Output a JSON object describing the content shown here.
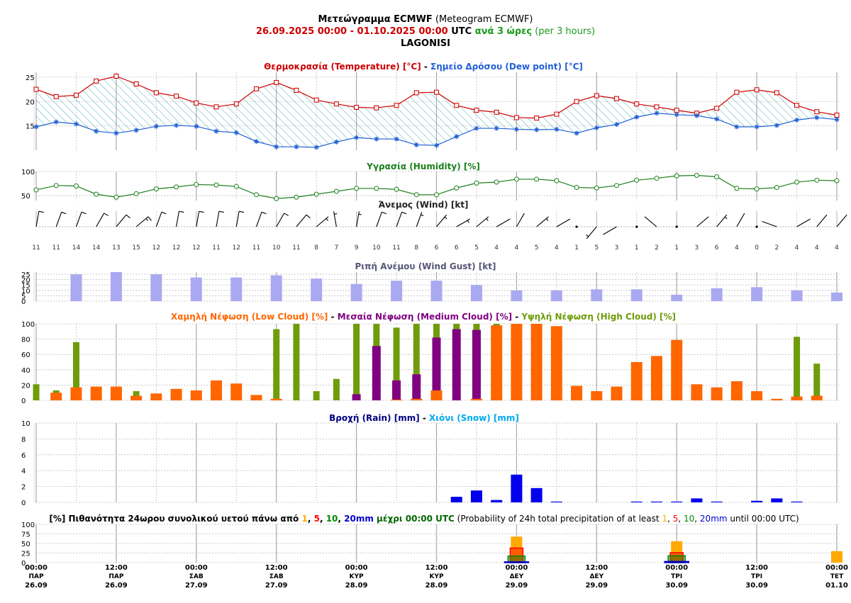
{
  "header": {
    "line1_bold": "Μετεώγραμμα ECMWF",
    "line1_rest": " (Meteogram ECMWF)",
    "range_start": "26.09.2025 00:00",
    "range_sep": " - ",
    "range_end": "01.10.2025 00:00",
    "utc": " UTC",
    "step_gr": " ανά 3 ώρες",
    "step_en": " (per 3 hours)",
    "location": "LAGONISI"
  },
  "colors": {
    "temperature": "#cc0000",
    "dewpoint": "#1f5fd6",
    "hatch": "#3aa6a6",
    "humidity": "#1b7f1b",
    "wind": "#000000",
    "gust": "#a9a9f2",
    "low_cloud": "#ff6600",
    "medium_cloud": "#800080",
    "high_cloud": "#6f9c0a",
    "rain": "#0000ee",
    "snow": "#00aaee",
    "prob1": "#ffaa00",
    "prob5": "#ff0000",
    "prob10": "#008800",
    "prob20": "#0000cc",
    "grid": "#999999"
  },
  "chart_data": [
    {
      "type": "line",
      "title_gr_temp": "Θερμοκρασία (Temperature) [°C]",
      "title_sep": " - ",
      "title_gr_dew": "Σημείο Δρόσου (Dew point) [°C]",
      "ylim": [
        10,
        26
      ],
      "yticks": [
        "25",
        "20",
        "15"
      ],
      "series": [
        {
          "name": "Θερμοκρασία (Temperature) [°C]",
          "values": [
            22.5,
            21.0,
            21.3,
            24.2,
            25.2,
            23.6,
            21.8,
            21.1,
            19.7,
            18.9,
            19.5,
            22.6,
            23.9,
            22.3,
            20.3,
            19.5,
            18.8,
            18.7,
            19.2,
            21.8,
            21.9,
            19.2,
            18.2,
            17.8,
            16.7,
            16.6,
            17.4,
            20.0,
            21.2,
            20.6,
            19.5,
            18.9,
            18.2,
            17.6,
            18.6,
            21.9,
            22.4,
            21.8,
            19.2,
            17.9,
            17.2
          ]
        },
        {
          "name": "Σημείο Δρόσου (Dew point) [°C]",
          "values": [
            14.8,
            15.8,
            15.4,
            13.9,
            13.5,
            14.1,
            14.9,
            15.1,
            14.9,
            13.9,
            13.6,
            11.8,
            10.7,
            10.7,
            10.6,
            11.7,
            12.6,
            12.3,
            12.3,
            11.1,
            11.0,
            12.8,
            14.5,
            14.5,
            14.3,
            14.2,
            14.3,
            13.5,
            14.6,
            15.3,
            16.8,
            17.6,
            17.3,
            17.1,
            16.4,
            14.8,
            14.8,
            15.1,
            16.2,
            16.7,
            16.3
          ]
        }
      ]
    },
    {
      "type": "line",
      "title": "Υγρασία (Humidity) [%]",
      "ylim": [
        40,
        100
      ],
      "yticks": [
        "100",
        "50"
      ],
      "series": [
        {
          "name": "Υγρασία (Humidity) [%]",
          "values": [
            62,
            71,
            70,
            53,
            47,
            54,
            64,
            68,
            73,
            72,
            69,
            52,
            44,
            47,
            53,
            59,
            65,
            65,
            63,
            52,
            52,
            66,
            76,
            78,
            84,
            84,
            81,
            67,
            66,
            71,
            82,
            86,
            91,
            92,
            89,
            65,
            64,
            67,
            78,
            82,
            81
          ]
        }
      ]
    },
    {
      "type": "wind",
      "title": "Άνεμος (Wind) [kt]",
      "speed_labels": [
        "11",
        "11",
        "14",
        "14",
        "13",
        "15",
        "12",
        "12",
        "12",
        "11",
        "12",
        "11",
        "10",
        "11",
        "8",
        "7",
        "9",
        "10",
        "11",
        "8",
        "6",
        "6",
        "5",
        "4",
        "4",
        "5",
        "4",
        "1",
        "5",
        "3",
        "1",
        "2",
        "1",
        "3",
        "6",
        "4",
        "0",
        "2",
        "4",
        "4",
        "4"
      ],
      "direction_deg": [
        10,
        20,
        20,
        30,
        40,
        50,
        20,
        10,
        10,
        10,
        10,
        20,
        30,
        40,
        50,
        350,
        10,
        20,
        20,
        20,
        40,
        60,
        50,
        60,
        30,
        50,
        60,
        0,
        220,
        240,
        260,
        310,
        0,
        50,
        40,
        30,
        0,
        290,
        60,
        40,
        40
      ]
    },
    {
      "type": "bar",
      "title": "Ριπή Ανέμου (Wind Gust) [kt]",
      "ylim": [
        0,
        27
      ],
      "yticks": [
        "25",
        "20",
        "15",
        "10",
        "5",
        "0"
      ],
      "values": [
        25,
        27,
        25,
        22,
        22,
        24,
        21,
        16,
        19,
        19,
        15,
        10,
        10,
        11,
        11,
        6,
        12,
        13,
        10,
        8
      ]
    },
    {
      "type": "bar",
      "title_low": "Χαμηλή Νέφωση (Low Cloud) [%]",
      "title_sep1": " - ",
      "title_med": "Μεσαία Νέφωση (Medium Cloud) [%]",
      "title_sep2": " - ",
      "title_high": "Υψηλή Νέφωση (High Cloud) [%]",
      "ylim": [
        0,
        100
      ],
      "yticks": [
        "100",
        "80",
        "60",
        "40",
        "20",
        "0"
      ],
      "series": [
        {
          "name": "Χαμηλή Νέφωση (Low Cloud) [%]",
          "values": [
            0,
            10,
            17,
            18,
            18,
            6,
            9,
            15,
            13,
            26,
            22,
            7,
            2,
            0,
            0,
            0,
            0,
            0,
            1,
            2,
            13,
            0,
            2,
            98,
            100,
            100,
            97,
            19,
            12,
            18,
            50,
            58,
            79,
            21,
            17,
            25,
            12,
            2,
            5,
            6,
            0
          ]
        },
        {
          "name": "Μεσαία Νέφωση (Medium Cloud) [%]",
          "values": [
            0,
            0,
            0,
            0,
            0,
            0,
            0,
            0,
            0,
            0,
            0,
            0,
            0,
            0,
            0,
            0,
            8,
            71,
            26,
            34,
            82,
            93,
            92,
            63,
            0,
            0,
            0,
            0,
            0,
            0,
            0,
            0,
            0,
            0,
            0,
            0,
            0,
            0,
            0,
            0,
            0
          ]
        },
        {
          "name": "Υψηλή Νέφωση (High Cloud) [%]",
          "values": [
            21,
            13,
            76,
            0,
            0,
            12,
            0,
            0,
            0,
            0,
            0,
            0,
            93,
            100,
            12,
            28,
            100,
            100,
            95,
            100,
            100,
            100,
            100,
            100,
            0,
            0,
            0,
            0,
            12,
            0,
            0,
            0,
            0,
            0,
            0,
            0,
            0,
            0,
            83,
            48,
            0
          ]
        }
      ]
    },
    {
      "type": "bar",
      "title_rain": "Βροχή (Rain) [mm]",
      "title_sep": " - ",
      "title_snow": "Χιόνι (Snow) [mm]",
      "ylim": [
        0,
        10
      ],
      "yticks": [
        "10",
        "8",
        "6",
        "4",
        "2",
        "0"
      ],
      "series": [
        {
          "name": "Βροχή (Rain) [mm]",
          "values": [
            0,
            0,
            0,
            0,
            0,
            0,
            0,
            0,
            0,
            0,
            0,
            0,
            0,
            0,
            0,
            0,
            0,
            0,
            0,
            0,
            0,
            0.7,
            1.5,
            0.3,
            3.5,
            1.8,
            0.1,
            0,
            0,
            0,
            0.1,
            0.1,
            0.1,
            0.5,
            0.1,
            0,
            0.2,
            0.5,
            0.1,
            0,
            0
          ]
        },
        {
          "name": "Χιόνι (Snow) [mm]",
          "values": [
            0,
            0,
            0,
            0,
            0,
            0,
            0,
            0,
            0,
            0,
            0,
            0,
            0,
            0,
            0,
            0,
            0,
            0,
            0,
            0,
            0,
            0,
            0,
            0,
            0,
            0,
            0,
            0,
            0,
            0,
            0,
            0,
            0,
            0,
            0,
            0,
            0,
            0,
            0,
            0,
            0
          ]
        }
      ]
    },
    {
      "type": "bar",
      "title_pre": "[%] Πιθανότητα 24ωρου συνολικού υετού πάνω από ",
      "t1": "1",
      "c1": ", ",
      "t5": "5",
      "c2": ", ",
      "t10": "10",
      "c3": ", ",
      "t20": "20mm",
      "title_mid": " μέχρι 00:00 UTC",
      "title_en_pre": " (Probability of 24h total precipitation of at least ",
      "e1": "1",
      "ec1": ", ",
      "e5": "5",
      "ec2": ", ",
      "e10": "10",
      "ec3": ", ",
      "e20": "20mm",
      "title_en_post": " until 00:00 UTC)",
      "ylim": [
        0,
        100
      ],
      "yticks": [
        "100",
        "75",
        "50",
        "25",
        "0"
      ],
      "days": [
        "29.09",
        "30.09",
        "01.10"
      ],
      "series": [
        {
          "name": "1",
          "values": [
            68,
            56,
            30
          ]
        },
        {
          "name": "5",
          "values": [
            38,
            26,
            0
          ]
        },
        {
          "name": "10",
          "values": [
            17,
            18,
            0
          ]
        },
        {
          "name": "20",
          "values": [
            2,
            3,
            0
          ]
        }
      ]
    }
  ],
  "x_axis": {
    "times": [
      "00:00",
      "12:00",
      "00:00",
      "12:00",
      "00:00",
      "12:00",
      "00:00",
      "12:00",
      "00:00",
      "12:00",
      "00:00"
    ],
    "days": [
      "ΠΑΡ",
      "ΠΑΡ",
      "ΣΑΒ",
      "ΣΑΒ",
      "ΚΥΡ",
      "ΚΥΡ",
      "ΔΕΥ",
      "ΔΕΥ",
      "ΤΡΙ",
      "ΤΡΙ",
      "ΤΕΤ"
    ],
    "dates": [
      "26.09",
      "26.09",
      "27.09",
      "27.09",
      "28.09",
      "28.09",
      "29.09",
      "29.09",
      "30.09",
      "30.09",
      "01.10"
    ]
  }
}
